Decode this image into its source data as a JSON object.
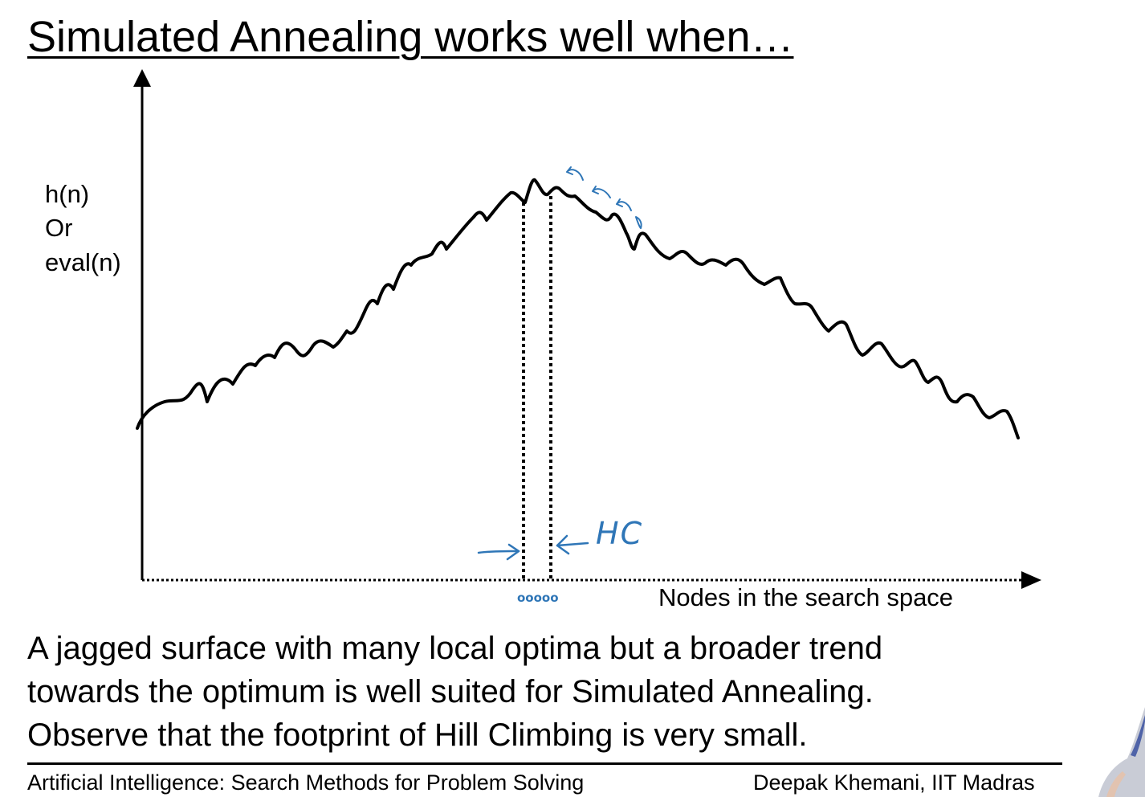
{
  "slide": {
    "title": "Simulated Annealing works well when…",
    "y_axis_lines": [
      "h(n)",
      "Or",
      "eval(n)"
    ],
    "x_axis_label": "Nodes in the search space",
    "annotations": {
      "hill_climbing_label": "HC",
      "footprint_marks": "ooooo"
    },
    "body_lines": [
      "A jagged surface with many local optima but a broader trend",
      "towards the optimum is well suited for Simulated Annealing.",
      "Observe that the footprint of Hill Climbing is very small."
    ],
    "footer": {
      "left": "Artificial Intelligence: Search Methods for Problem Solving",
      "right": "Deepak Khemani, IIT Madras"
    }
  },
  "colors": {
    "ink": "#000000",
    "annotation_ink": "#2f76b7",
    "background": "#ffffff"
  },
  "icons": [
    "arrow-right-icon",
    "arrow-left-icon",
    "hop-arrow-icon"
  ]
}
